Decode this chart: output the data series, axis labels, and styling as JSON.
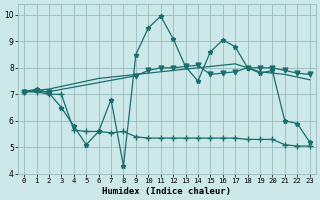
{
  "xlabel": "Humidex (Indice chaleur)",
  "bg_color": "#cce8e8",
  "grid_color": "#99bbbb",
  "line_color": "#1a6e6e",
  "xlim": [
    -0.5,
    23.5
  ],
  "ylim": [
    4,
    10.4
  ],
  "x_ticks": [
    0,
    1,
    2,
    3,
    4,
    5,
    6,
    7,
    8,
    9,
    10,
    11,
    12,
    13,
    14,
    15,
    16,
    17,
    18,
    19,
    20,
    21,
    22,
    23
  ],
  "y_ticks": [
    4,
    5,
    6,
    7,
    8,
    9,
    10
  ],
  "series": [
    {
      "x": [
        0,
        1,
        2,
        3,
        4,
        5,
        6,
        7,
        8,
        9,
        10,
        11,
        12,
        13,
        14,
        15,
        16,
        17,
        18,
        19,
        20,
        21,
        22,
        23
      ],
      "y": [
        7.1,
        7.2,
        7.05,
        6.5,
        5.8,
        5.1,
        5.6,
        6.8,
        4.3,
        8.5,
        9.5,
        9.95,
        9.1,
        8.05,
        7.5,
        8.6,
        9.05,
        8.8,
        8.0,
        7.8,
        7.9,
        6.0,
        5.9,
        5.2
      ],
      "marker": "*",
      "markersize": 3.5
    },
    {
      "x": [
        0,
        2,
        9,
        10,
        11,
        12,
        13,
        14,
        15,
        16,
        17,
        18,
        19,
        20,
        21,
        22,
        23
      ],
      "y": [
        7.1,
        7.1,
        7.7,
        7.9,
        8.0,
        8.0,
        8.05,
        8.1,
        7.75,
        7.8,
        7.85,
        8.0,
        8.0,
        8.0,
        7.9,
        7.8,
        7.75
      ],
      "marker": "v",
      "markersize": 3.5
    },
    {
      "x": [
        0,
        1,
        2,
        3,
        4,
        5,
        6,
        7,
        8,
        9,
        10,
        11,
        12,
        13,
        14,
        15,
        16,
        17,
        18,
        19,
        20,
        21,
        22,
        23
      ],
      "y": [
        7.1,
        7.15,
        7.2,
        7.3,
        7.4,
        7.5,
        7.6,
        7.65,
        7.7,
        7.75,
        7.8,
        7.85,
        7.9,
        7.95,
        8.0,
        8.05,
        8.1,
        8.15,
        8.0,
        7.85,
        7.8,
        7.75,
        7.65,
        7.55
      ],
      "marker": null,
      "markersize": 0
    },
    {
      "x": [
        0,
        1,
        2,
        3,
        4,
        5,
        6,
        7,
        8,
        9,
        10,
        11,
        12,
        13,
        14,
        15,
        16,
        17,
        18,
        19,
        20,
        21,
        22,
        23
      ],
      "y": [
        7.1,
        7.1,
        7.0,
        7.0,
        5.65,
        5.6,
        5.6,
        5.55,
        5.6,
        5.4,
        5.35,
        5.35,
        5.35,
        5.35,
        5.35,
        5.35,
        5.35,
        5.35,
        5.3,
        5.3,
        5.3,
        5.1,
        5.05,
        5.05
      ],
      "marker": "+",
      "markersize": 4
    }
  ]
}
